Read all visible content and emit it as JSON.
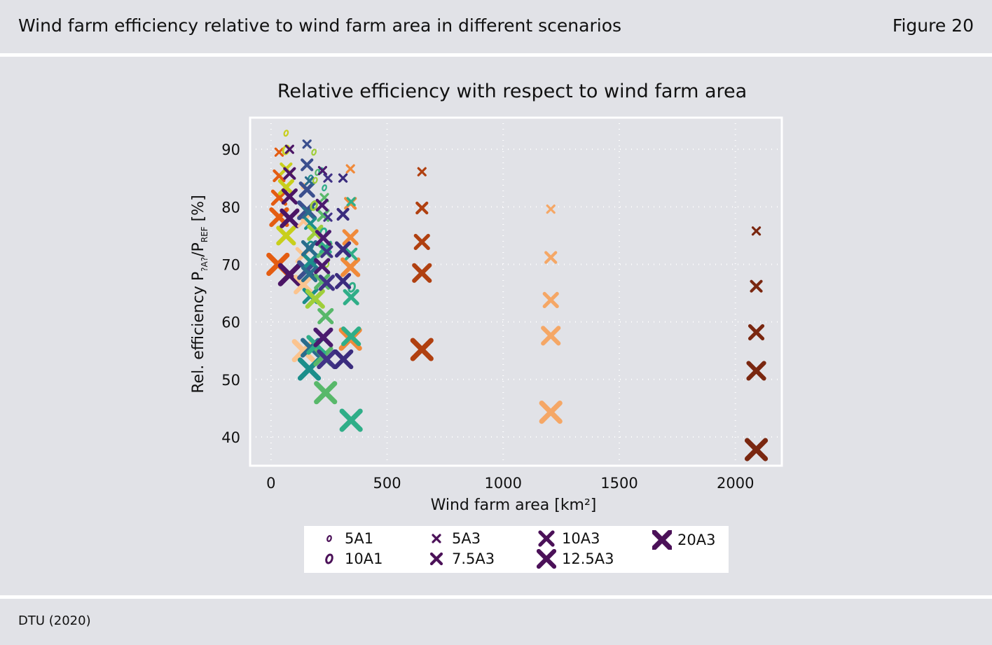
{
  "header": {
    "title": "Wind farm efficiency relative to wind farm area in different scenarios",
    "figure_label": "Figure 20"
  },
  "footer": {
    "source": "DTU (2020)"
  },
  "colors": {
    "background": "#e1e2e7",
    "rule": "#ffffff",
    "palette": [
      "#d9731e",
      "#f0a567",
      "#fbc48f",
      "#d0cf1d",
      "#9fce3a",
      "#58b86a",
      "#2fae88",
      "#1b8e8b",
      "#2a6c8c",
      "#3b4f8e",
      "#413386",
      "#4b1a6e",
      "#5a0f4e",
      "#7a2710",
      "#a13c0c",
      "#d65511",
      "#e8720f"
    ]
  },
  "chart_data": {
    "type": "scatter",
    "title": "Relative efficiency with respect to wind farm area",
    "xlabel": "Wind farm area [km²]",
    "ylabel": "Rel. efficiency P?A?/PREF [%]",
    "ylabel_parts": {
      "main": "Rel. efficiency P",
      "sub1": "?A?",
      "mid": "/P",
      "sub2": "REF",
      "end": " [%]"
    },
    "xlim": [
      -90,
      2200
    ],
    "ylim": [
      35,
      95.5
    ],
    "xticks": [
      0,
      500,
      1000,
      1500,
      2000
    ],
    "yticks": [
      40,
      50,
      60,
      70,
      80,
      90
    ],
    "grid": true,
    "legend_position": "bottom-center",
    "legend": [
      {
        "label": "5A1",
        "marker": "o",
        "size": 1
      },
      {
        "label": "10A1",
        "marker": "o",
        "size": 2
      },
      {
        "label": "5A3",
        "marker": "x",
        "size": 1
      },
      {
        "label": "7.5A3",
        "marker": "x",
        "size": 2
      },
      {
        "label": "10A3",
        "marker": "x",
        "size": 3
      },
      {
        "label": "12.5A3",
        "marker": "x",
        "size": 4
      },
      {
        "label": "20A3",
        "marker": "x",
        "size": 5
      }
    ],
    "series": [
      {
        "color": "#7a2710",
        "points": [
          [
            2090,
            75.8,
            "x",
            1
          ],
          [
            2090,
            66.2,
            "x",
            2
          ],
          [
            2090,
            58.2,
            "x",
            3
          ],
          [
            2090,
            51.5,
            "x",
            4
          ],
          [
            2090,
            37.8,
            "x",
            5
          ]
        ]
      },
      {
        "color": "#b04010",
        "points": [
          [
            650,
            86.1,
            "x",
            1
          ],
          [
            650,
            79.8,
            "x",
            2
          ],
          [
            650,
            73.9,
            "x",
            3
          ],
          [
            650,
            68.5,
            "x",
            4
          ],
          [
            650,
            55.2,
            "x",
            5
          ]
        ]
      },
      {
        "color": "#f5a766",
        "points": [
          [
            1205,
            79.6,
            "x",
            1
          ],
          [
            1205,
            71.2,
            "x",
            2
          ],
          [
            1205,
            63.8,
            "x",
            3
          ],
          [
            1205,
            57.6,
            "x",
            4
          ],
          [
            1205,
            44.3,
            "x",
            5
          ]
        ]
      },
      {
        "color": "#f08a3a",
        "points": [
          [
            342,
            86.6,
            "x",
            1
          ],
          [
            342,
            80.6,
            "x",
            2
          ],
          [
            342,
            74.7,
            "x",
            3
          ],
          [
            342,
            69.5,
            "x",
            4
          ],
          [
            342,
            57.0,
            "x",
            5
          ]
        ]
      },
      {
        "color": "#2fae88",
        "points": [
          [
            345,
            80.9,
            "x",
            1
          ],
          [
            348,
            66.0,
            "o",
            2
          ],
          [
            345,
            71.8,
            "x",
            2
          ],
          [
            345,
            64.3,
            "x",
            3
          ],
          [
            345,
            57.5,
            "x",
            4
          ],
          [
            345,
            42.9,
            "x",
            5
          ]
        ]
      },
      {
        "color": "#e45d12",
        "points": [
          [
            35,
            89.5,
            "x",
            1
          ],
          [
            35,
            85.4,
            "x",
            2
          ],
          [
            35,
            81.6,
            "x",
            3
          ],
          [
            35,
            78.2,
            "x",
            4
          ],
          [
            30,
            70.0,
            "x",
            5
          ]
        ]
      },
      {
        "color": "#c8cf1c",
        "points": [
          [
            65,
            92.8,
            "o",
            1
          ],
          [
            65,
            89.9,
            "o",
            2
          ],
          [
            65,
            86.6,
            "x",
            2
          ],
          [
            65,
            83.4,
            "x",
            3
          ],
          [
            65,
            75.0,
            "x",
            4
          ]
        ]
      },
      {
        "color": "#4b1565",
        "points": [
          [
            80,
            90.0,
            "x",
            1
          ],
          [
            80,
            85.8,
            "x",
            2
          ],
          [
            80,
            81.8,
            "x",
            3
          ],
          [
            80,
            78.0,
            "x",
            4
          ],
          [
            80,
            68.2,
            "x",
            5
          ]
        ]
      },
      {
        "color": "#fbc48f",
        "points": [
          [
            140,
            83.6,
            "o",
            1
          ],
          [
            140,
            77.5,
            "x",
            2
          ],
          [
            140,
            71.6,
            "x",
            3
          ],
          [
            140,
            66.5,
            "x",
            4
          ],
          [
            140,
            55.0,
            "x",
            5
          ]
        ]
      },
      {
        "color": "#3b4f8e",
        "points": [
          [
            155,
            90.9,
            "x",
            1
          ],
          [
            155,
            87.3,
            "x",
            2
          ],
          [
            155,
            83.0,
            "x",
            3
          ],
          [
            155,
            79.4,
            "x",
            4
          ],
          [
            155,
            69.0,
            "x",
            4
          ]
        ]
      },
      {
        "color": "#1b8e8b",
        "points": [
          [
            170,
            85.0,
            "o",
            1
          ],
          [
            168,
            73.2,
            "o",
            2
          ],
          [
            170,
            77.1,
            "x",
            2
          ],
          [
            170,
            70.5,
            "x",
            3
          ],
          [
            170,
            64.5,
            "x",
            3
          ],
          [
            165,
            51.8,
            "x",
            5
          ]
        ]
      },
      {
        "color": "#2a6c8c",
        "points": [
          [
            165,
            84.5,
            "x",
            1
          ],
          [
            160,
            79.0,
            "x",
            2
          ],
          [
            165,
            72.8,
            "x",
            3
          ],
          [
            165,
            68.3,
            "x",
            3
          ],
          [
            170,
            55.5,
            "x",
            4
          ]
        ]
      },
      {
        "color": "#9fce3a",
        "points": [
          [
            185,
            89.5,
            "o",
            1
          ],
          [
            190,
            84.6,
            "o",
            1
          ],
          [
            185,
            80.2,
            "o",
            2
          ],
          [
            190,
            75.5,
            "x",
            3
          ],
          [
            190,
            64.0,
            "x",
            4
          ],
          [
            240,
            70.0,
            "o",
            1
          ]
        ]
      },
      {
        "color": "#58b86a",
        "points": [
          [
            200,
            86.0,
            "o",
            1
          ],
          [
            230,
            81.6,
            "x",
            1
          ],
          [
            225,
            78.5,
            "x",
            2
          ],
          [
            230,
            72.5,
            "x",
            3
          ],
          [
            220,
            67.0,
            "x",
            3
          ],
          [
            235,
            61.0,
            "x",
            3
          ],
          [
            225,
            54.0,
            "x",
            4
          ],
          [
            235,
            47.7,
            "x",
            5
          ]
        ]
      },
      {
        "color": "#2fae88",
        "points": [
          [
            215,
            86.3,
            "o",
            1
          ],
          [
            230,
            83.3,
            "o",
            1
          ],
          [
            225,
            75.5,
            "o",
            2
          ],
          [
            235,
            73.0,
            "x",
            2
          ],
          [
            195,
            56.0,
            "x",
            4
          ]
        ]
      },
      {
        "color": "#4b1a6e",
        "points": [
          [
            222,
            86.3,
            "x",
            1
          ],
          [
            220,
            80.3,
            "x",
            2
          ],
          [
            225,
            74.6,
            "x",
            3
          ],
          [
            220,
            69.7,
            "x",
            3
          ],
          [
            225,
            57.3,
            "x",
            4
          ]
        ]
      },
      {
        "color": "#413386",
        "points": [
          [
            245,
            85.0,
            "x",
            1
          ],
          [
            245,
            78.2,
            "x",
            1
          ],
          [
            240,
            72.2,
            "x",
            2
          ],
          [
            240,
            66.8,
            "x",
            3
          ],
          [
            240,
            53.5,
            "x",
            4
          ]
        ]
      },
      {
        "color": "#3a2c7e",
        "points": [
          [
            310,
            85.0,
            "x",
            1
          ],
          [
            310,
            78.7,
            "x",
            2
          ],
          [
            310,
            72.6,
            "x",
            3
          ],
          [
            310,
            67.1,
            "x",
            3
          ],
          [
            312,
            53.5,
            "x",
            4
          ]
        ]
      }
    ]
  }
}
